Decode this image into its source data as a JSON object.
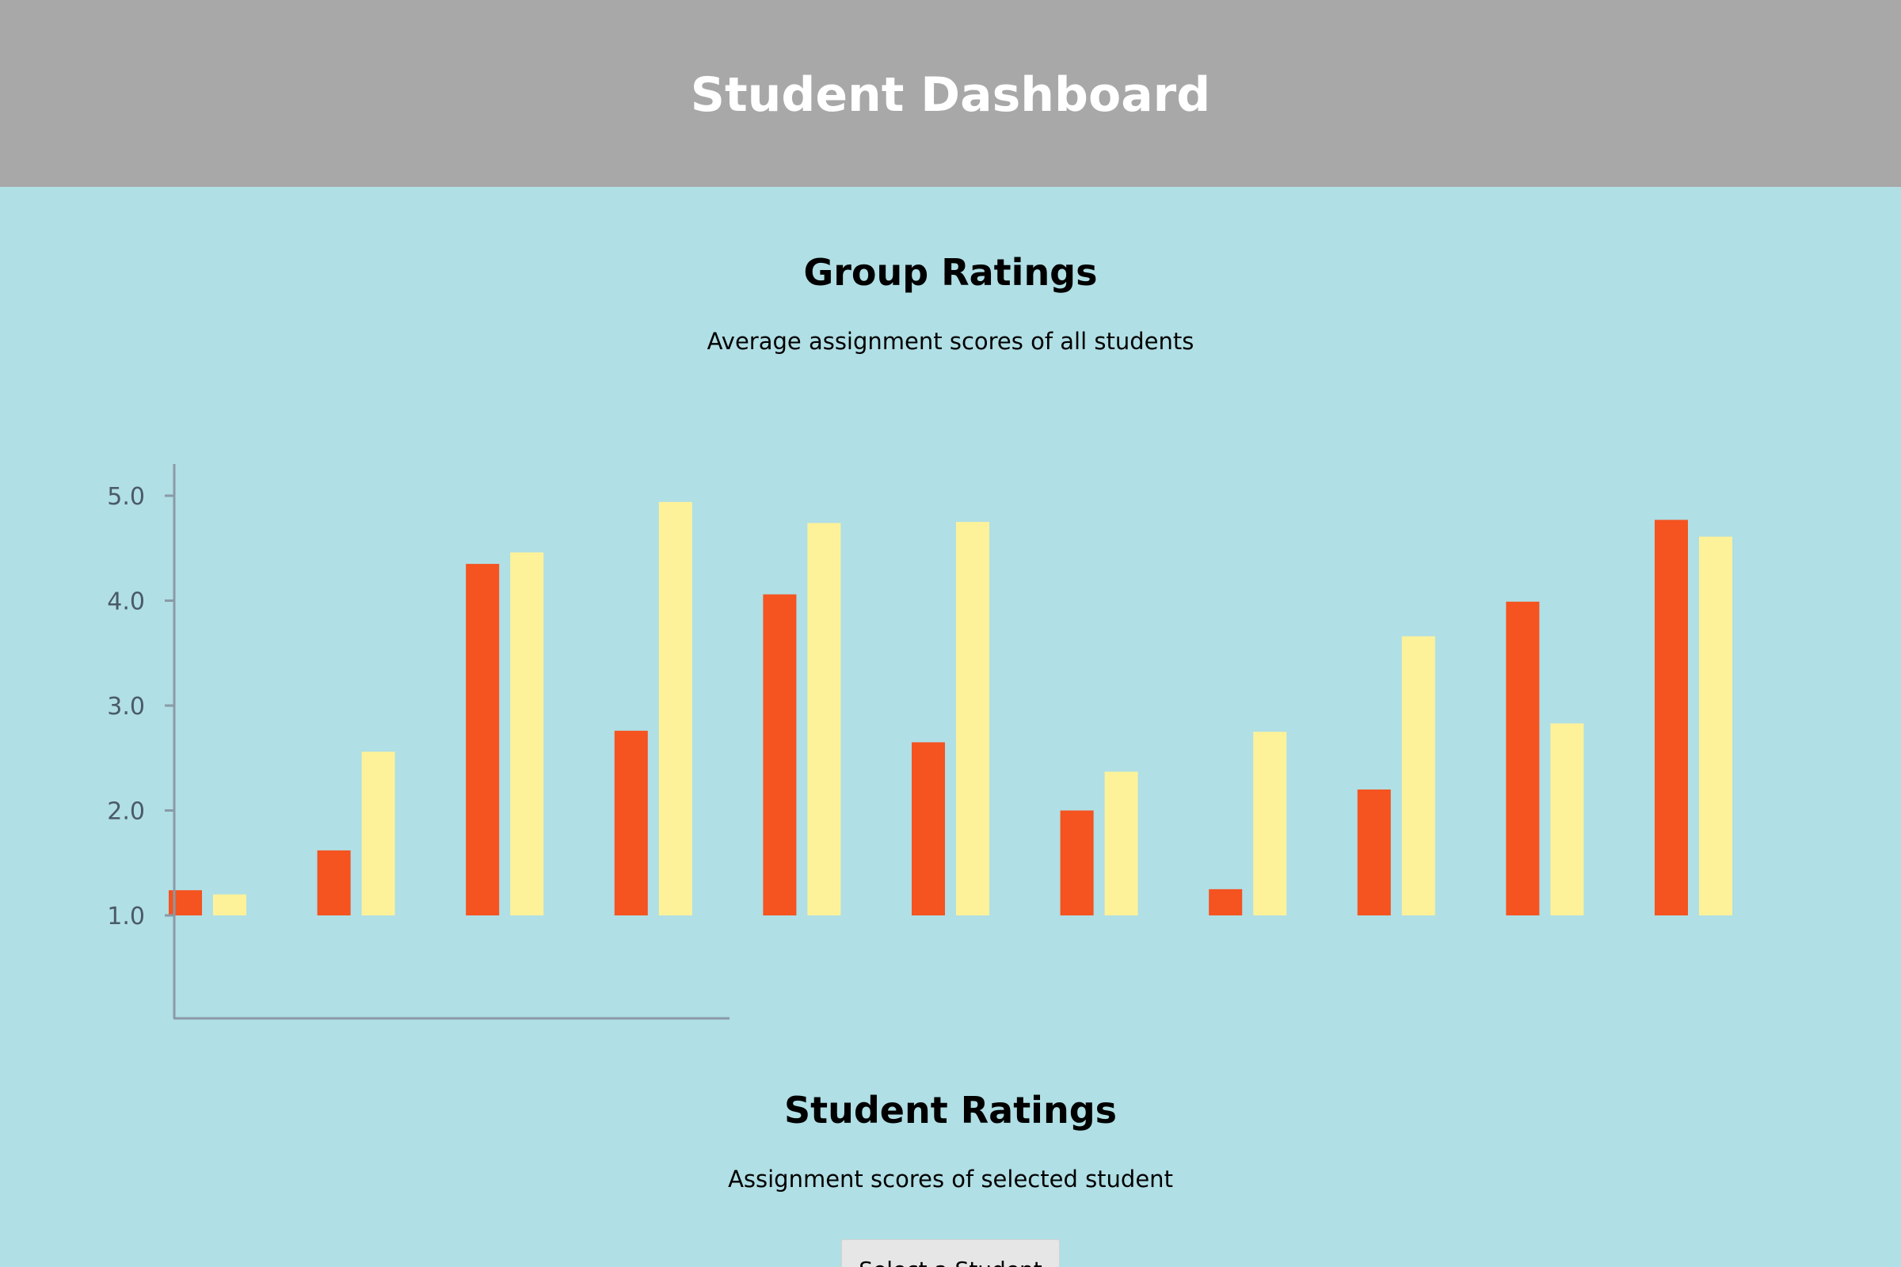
{
  "header": {
    "title": "Student Dashboard"
  },
  "group_ratings": {
    "title": "Group Ratings",
    "subtitle": "Average assignment scores of all students"
  },
  "student_ratings": {
    "title": "Student Ratings",
    "subtitle": "Assignment scores of selected student",
    "select_label": "Select a Student"
  },
  "colors": {
    "header_bg": "#a8a8a8",
    "page_bg": "#b0dfe5",
    "series_a": "#f5531f",
    "series_b": "#fdf29a",
    "axis": "#8a9aa6"
  },
  "chart_data": {
    "type": "bar",
    "title": "",
    "xlabel": "",
    "ylabel": "",
    "ylim": [
      0,
      5
    ],
    "y_baseline": 1.0,
    "yticks": [
      "1.0",
      "2.0",
      "3.0",
      "4.0",
      "5.0"
    ],
    "categories": [
      "",
      "",
      "",
      "",
      "",
      "",
      "",
      "",
      "",
      "",
      ""
    ],
    "grid": false,
    "legend": "none",
    "series": [
      {
        "values": [
          1.24,
          1.62,
          4.35,
          2.76,
          4.06,
          2.65,
          2.0,
          1.25,
          2.2,
          3.99,
          4.77
        ],
        "color": "#f5531f"
      },
      {
        "values": [
          1.2,
          2.56,
          4.46,
          4.94,
          4.74,
          4.75,
          2.37,
          2.75,
          3.66,
          2.83,
          4.61
        ],
        "color": "#fdf29a"
      }
    ]
  }
}
